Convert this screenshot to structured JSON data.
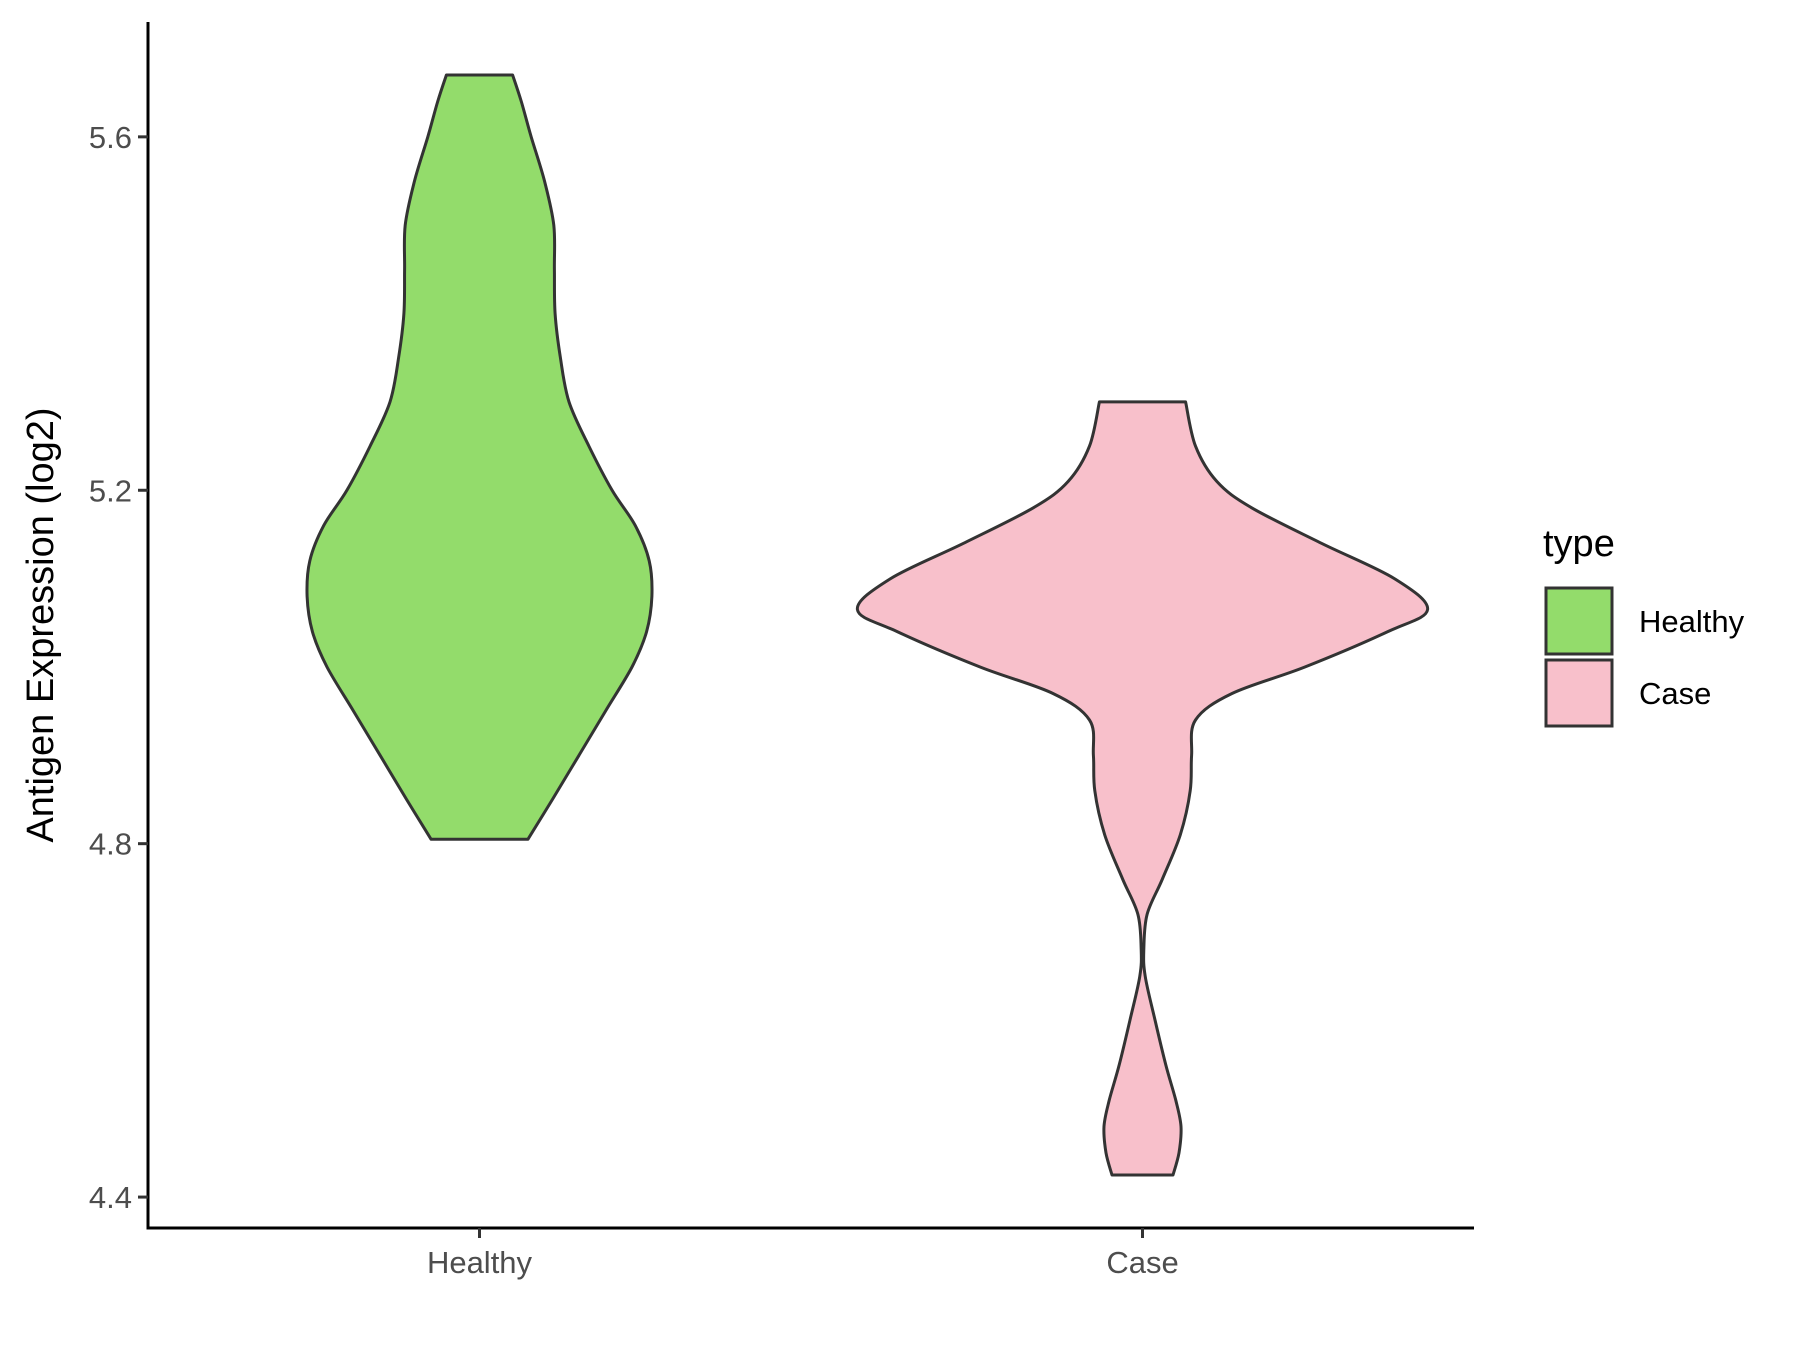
{
  "chart_data": {
    "type": "violin",
    "ylabel": "Antigen Expression (log2)",
    "xlabel": "",
    "categories": [
      "Healthy",
      "Case"
    ],
    "ylim": [
      4.365,
      5.73
    ],
    "yticks": [
      4.4,
      4.8,
      5.2,
      5.6
    ],
    "ytick_labels": [
      "4.4",
      "4.8",
      "5.2",
      "5.6"
    ],
    "grid": false,
    "legend": {
      "title": "type",
      "position": "right",
      "entries": [
        "Healthy",
        "Case"
      ]
    },
    "series": [
      {
        "name": "Healthy",
        "color": "#93dc6b",
        "min": 4.805,
        "max": 5.67,
        "profile": [
          [
            4.805,
            0.073
          ],
          [
            4.85,
            0.11
          ],
          [
            4.9,
            0.15
          ],
          [
            4.95,
            0.19
          ],
          [
            5.0,
            0.23
          ],
          [
            5.04,
            0.252
          ],
          [
            5.08,
            0.26
          ],
          [
            5.12,
            0.256
          ],
          [
            5.16,
            0.235
          ],
          [
            5.2,
            0.2
          ],
          [
            5.25,
            0.165
          ],
          [
            5.3,
            0.135
          ],
          [
            5.35,
            0.122
          ],
          [
            5.4,
            0.114
          ],
          [
            5.45,
            0.113
          ],
          [
            5.5,
            0.112
          ],
          [
            5.55,
            0.098
          ],
          [
            5.6,
            0.078
          ],
          [
            5.64,
            0.063
          ],
          [
            5.67,
            0.05
          ]
        ]
      },
      {
        "name": "Case",
        "color": "#f8c0cb",
        "min": 4.425,
        "max": 5.3,
        "profile": [
          [
            4.425,
            0.046
          ],
          [
            4.45,
            0.055
          ],
          [
            4.48,
            0.058
          ],
          [
            4.51,
            0.05
          ],
          [
            4.55,
            0.035
          ],
          [
            4.6,
            0.019
          ],
          [
            4.65,
            0.004
          ],
          [
            4.68,
            0.002
          ],
          [
            4.72,
            0.007
          ],
          [
            4.76,
            0.03
          ],
          [
            4.81,
            0.057
          ],
          [
            4.86,
            0.072
          ],
          [
            4.9,
            0.074
          ],
          [
            4.94,
            0.08
          ],
          [
            4.97,
            0.135
          ],
          [
            5.0,
            0.245
          ],
          [
            5.04,
            0.37
          ],
          [
            5.065,
            0.43
          ],
          [
            5.1,
            0.38
          ],
          [
            5.14,
            0.27
          ],
          [
            5.18,
            0.165
          ],
          [
            5.21,
            0.112
          ],
          [
            5.25,
            0.08
          ],
          [
            5.3,
            0.065
          ]
        ]
      }
    ]
  }
}
